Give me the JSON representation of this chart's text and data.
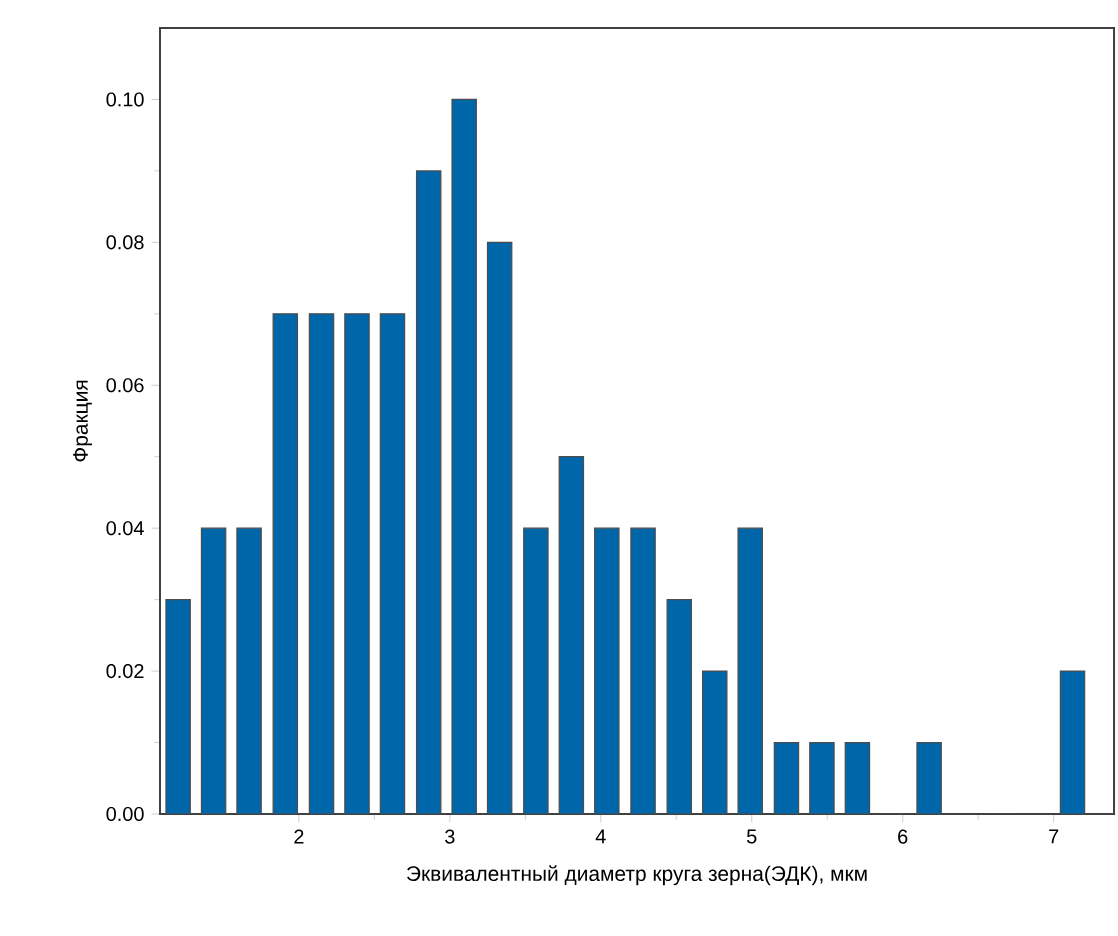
{
  "chart_data": {
    "type": "histogram",
    "xlabel": "Эквивалентный диаметр круга зерна(ЭДК), мкм",
    "ylabel": "Фракция",
    "bins": [
      1.08,
      1.32,
      1.55,
      1.79,
      2.03,
      2.27,
      2.5,
      2.74,
      2.98,
      3.21,
      3.45,
      3.69,
      3.92,
      4.16,
      4.4,
      4.64,
      4.87,
      5.11,
      5.35,
      5.58,
      5.82,
      6.06,
      6.29,
      7.01,
      7.24
    ],
    "values": [
      0.03,
      0.04,
      0.04,
      0.07,
      0.07,
      0.07,
      0.07,
      0.09,
      0.1,
      0.08,
      0.04,
      0.05,
      0.04,
      0.04,
      0.03,
      0.02,
      0.04,
      0.01,
      0.01,
      0.01,
      0,
      0.01,
      0,
      0.02
    ],
    "color": "#0066aa",
    "xlim": [
      1.08,
      7.4
    ],
    "ylim": [
      0,
      0.11
    ],
    "xticks": [
      2,
      3,
      4,
      5,
      6,
      7
    ],
    "yticks": [
      {
        "value": 0,
        "label": "0.00"
      },
      {
        "value": 0.02,
        "label": "0.02"
      },
      {
        "value": 0.04,
        "label": "0.04"
      },
      {
        "value": 0.06,
        "label": "0.06"
      },
      {
        "value": 0.08,
        "label": "0.08"
      },
      {
        "value": 0.1,
        "label": "0.10"
      }
    ]
  }
}
